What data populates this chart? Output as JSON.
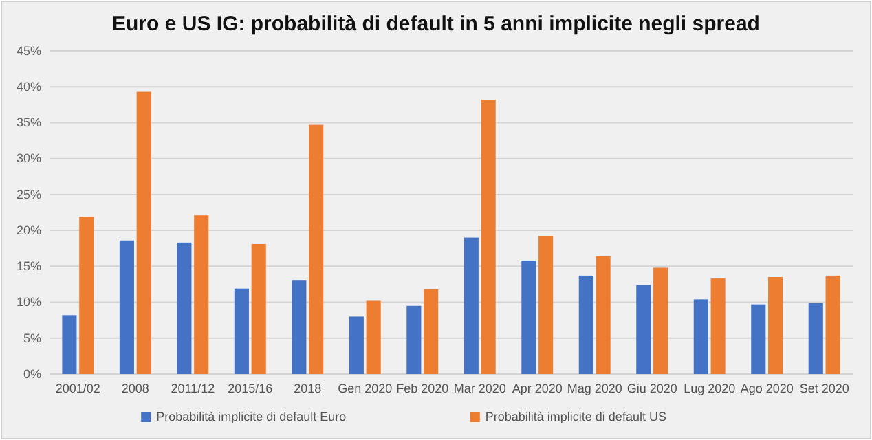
{
  "chart_data": {
    "type": "bar",
    "title": "Euro e US IG: probabilità di default in 5 anni implicite negli spread",
    "categories": [
      "2001/02",
      "2008",
      "2011/12",
      "2015/16",
      "2018",
      "Gen 2020",
      "Feb 2020",
      "Mar 2020",
      "Apr 2020",
      "Mag 2020",
      "Giu 2020",
      "Lug 2020",
      "Ago 2020",
      "Set 2020"
    ],
    "series": [
      {
        "name": "Probabilità implicite di default Euro",
        "color": "#4472c4",
        "values": [
          8.2,
          18.6,
          18.3,
          11.9,
          13.1,
          8.0,
          9.5,
          19.0,
          15.8,
          13.7,
          12.4,
          10.4,
          9.7,
          9.9
        ]
      },
      {
        "name": "Probabilità implicite di default US",
        "color": "#ed7d31",
        "values": [
          21.9,
          39.3,
          22.1,
          18.1,
          34.7,
          10.2,
          11.8,
          38.2,
          19.2,
          16.4,
          14.8,
          13.3,
          13.5,
          13.7
        ]
      }
    ],
    "ylim": [
      0,
      45
    ],
    "yticks": [
      {
        "value": 0,
        "label": "0%"
      },
      {
        "value": 5,
        "label": "5%"
      },
      {
        "value": 10,
        "label": "10%"
      },
      {
        "value": 15,
        "label": "15%"
      },
      {
        "value": 20,
        "label": "20%"
      },
      {
        "value": 25,
        "label": "25%"
      },
      {
        "value": 30,
        "label": "30%"
      },
      {
        "value": 35,
        "label": "35%"
      },
      {
        "value": 40,
        "label": "40%"
      },
      {
        "value": 45,
        "label": "45%"
      }
    ],
    "grid": "y",
    "legend": "bottom"
  }
}
